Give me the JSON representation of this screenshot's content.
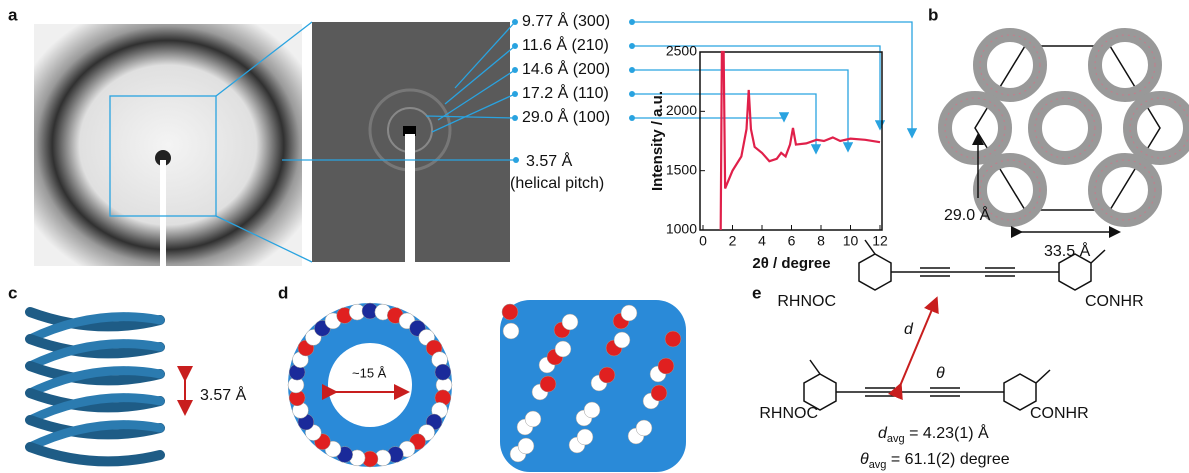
{
  "panels": {
    "a": "a",
    "b": "b",
    "c": "c",
    "d": "d",
    "e": "e"
  },
  "panel_a": {
    "reflections": [
      "9.77 Å (300)",
      "11.6 Å (210)",
      "14.6 Å (200)",
      "17.2 Å (110)",
      "29.0 Å (100)"
    ],
    "pitch": "3.57 Å",
    "pitch_note": "(helical pitch)"
  },
  "chart_data": {
    "type": "line",
    "xlabel": "2θ / degree",
    "ylabel": "Intensity / a.u.",
    "xlim": [
      0,
      12
    ],
    "ylim": [
      1000,
      2500
    ],
    "xticks": [
      0,
      2,
      4,
      6,
      8,
      10,
      12
    ],
    "yticks": [
      1000,
      1500,
      2000,
      2500
    ],
    "series": [
      {
        "color": "#e0204a",
        "x": [
          1.2,
          1.28,
          1.4,
          1.5,
          2.0,
          2.6,
          2.95,
          3.1,
          3.25,
          3.5,
          4.0,
          4.5,
          5.0,
          5.3,
          5.6,
          5.9,
          6.1,
          6.3,
          7.0,
          7.7,
          8.2,
          8.8,
          9.3,
          10.0,
          11.0,
          12.0
        ],
        "values": [
          1000,
          2500,
          2500,
          1350,
          1500,
          1620,
          1850,
          2180,
          1850,
          1700,
          1650,
          1580,
          1600,
          1650,
          1620,
          1720,
          1860,
          1720,
          1730,
          1760,
          1750,
          1780,
          1750,
          1770,
          1760,
          1740
        ]
      }
    ]
  },
  "panel_b": {
    "height": "29.0 Å",
    "width": "33.5 Å"
  },
  "panel_c": {
    "pitch": "3.57 Å"
  },
  "panel_d": {
    "pore": "~15 Å"
  },
  "panel_e": {
    "group_left_top": "RHNOC",
    "group_right_top": "CONHR",
    "group_left_bottom": "RHNOC",
    "group_right_bottom": "CONHR",
    "d": "d",
    "theta": "θ",
    "d_avg": {
      "symbol": "d",
      "sub": "avg",
      "rest": " = 4.23(1) Å"
    },
    "theta_avg": {
      "symbol": "θ",
      "sub": "avg",
      "rest": " = 61.1(2) degree"
    }
  }
}
